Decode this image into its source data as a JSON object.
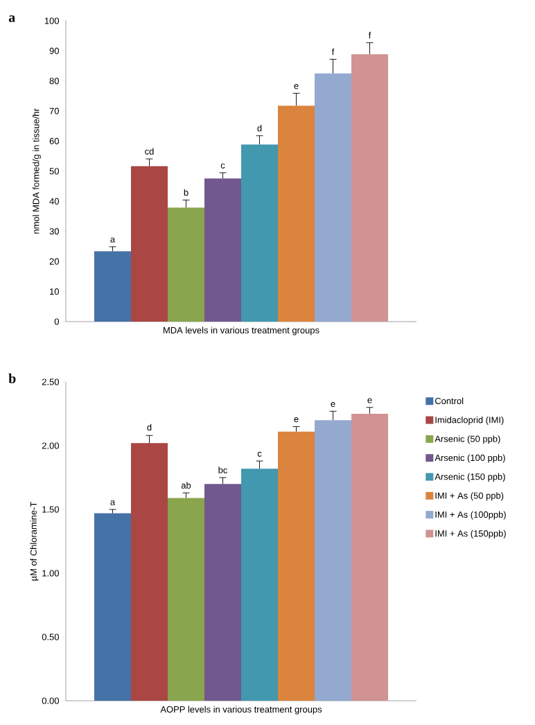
{
  "chart_data": [
    {
      "type": "bar",
      "title": "a",
      "xlabel": "MDA levels in various treatment groups",
      "ylabel": "nmol MDA formed/g in tissue/hr",
      "categories": [
        null
      ],
      "ylim": [
        0,
        100
      ],
      "yticks": [
        0,
        10,
        20,
        30,
        40,
        50,
        60,
        70,
        80,
        90,
        100
      ],
      "legend": false,
      "series": [
        {
          "color": "#4572a7",
          "values": [
            23.4
          ],
          "errors": [
            1.5
          ]
        },
        {
          "color": "#aa4643",
          "values": [
            51.7
          ],
          "errors": [
            2.4
          ]
        },
        {
          "color": "#89a54e",
          "values": [
            37.9
          ],
          "errors": [
            2.5
          ]
        },
        {
          "color": "#71588f",
          "values": [
            47.6
          ],
          "errors": [
            1.9
          ]
        },
        {
          "color": "#4198af",
          "values": [
            58.9
          ],
          "errors": [
            2.9
          ]
        },
        {
          "color": "#db843d",
          "values": [
            71.8
          ],
          "errors": [
            4.1
          ]
        },
        {
          "color": "#93a9cf",
          "values": [
            82.5
          ],
          "errors": [
            4.7
          ]
        },
        {
          "color": "#d19392",
          "values": [
            88.9
          ],
          "errors": [
            3.8
          ]
        }
      ],
      "annotations": [
        {
          "text": "a",
          "y": 24.9
        },
        {
          "text": "cd",
          "y": 54.1
        },
        {
          "text": "b",
          "y": 40.4
        },
        {
          "text": "c",
          "y": 49.5
        },
        {
          "text": "d",
          "y": 61.8
        },
        {
          "text": "e",
          "y": 75.9
        },
        {
          "text": "f",
          "y": 87.2
        },
        {
          "text": "f",
          "y": 92.7
        }
      ]
    },
    {
      "type": "bar",
      "title": "b",
      "xlabel": "AOPP levels in various treatment groups",
      "ylabel": "µM of Chloramine-T",
      "categories": [
        null
      ],
      "ylim": [
        0,
        2.5
      ],
      "yticks": [
        {
          "value": 0,
          "label": "0.00"
        },
        {
          "value": 0.5,
          "label": "0.50"
        },
        {
          "value": 1,
          "label": "1.00"
        },
        {
          "value": 1.5,
          "label": "1.50"
        },
        {
          "value": 2,
          "label": "2.00"
        },
        {
          "value": 2.5,
          "label": "2.50"
        }
      ],
      "legend": "right",
      "series": [
        {
          "name": "Control",
          "color": "#4572a7",
          "values": [
            1.47
          ],
          "errors": [
            0.03
          ]
        },
        {
          "name": "Imidacloprid (IMI)",
          "color": "#aa4643",
          "values": [
            2.02
          ],
          "errors": [
            0.06
          ]
        },
        {
          "name": "Arsenic (50 ppb)",
          "color": "#89a54e",
          "values": [
            1.59
          ],
          "errors": [
            0.04
          ]
        },
        {
          "name": "Arsenic (100 ppb)",
          "color": "#71588f",
          "values": [
            1.7
          ],
          "errors": [
            0.05
          ]
        },
        {
          "name": "Arsenic (150 ppb)",
          "color": "#4198af",
          "values": [
            1.82
          ],
          "errors": [
            0.06
          ]
        },
        {
          "name": "IMI + As (50 ppb)",
          "color": "#db843d",
          "values": [
            2.11
          ],
          "errors": [
            0.04
          ]
        },
        {
          "name": "IMI + As (100ppb)",
          "color": "#93a9cf",
          "values": [
            2.2
          ],
          "errors": [
            0.07
          ]
        },
        {
          "name": "IMI + As (150ppb)",
          "color": "#d19392",
          "values": [
            2.25
          ],
          "errors": [
            0.05
          ]
        }
      ],
      "annotations": [
        {
          "text": "a",
          "y": 1.5
        },
        {
          "text": "d",
          "y": 2.085
        },
        {
          "text": "ab",
          "y": 1.63
        },
        {
          "text": "bc",
          "y": 1.75
        },
        {
          "text": "c",
          "y": 1.88
        },
        {
          "text": "e",
          "y": 2.15
        },
        {
          "text": "e",
          "y": 2.27
        },
        {
          "text": "e",
          "y": 2.3
        }
      ]
    }
  ]
}
